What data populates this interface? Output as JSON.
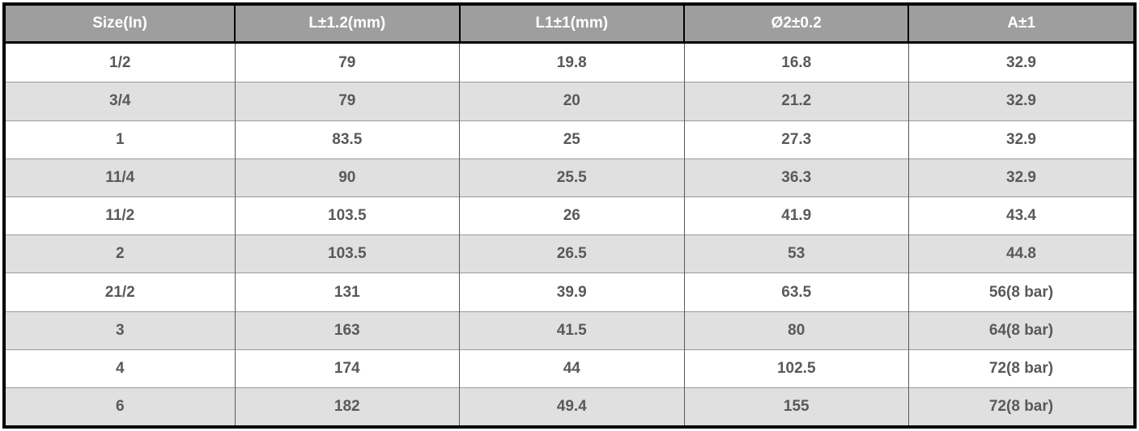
{
  "table": {
    "columns": [
      "Size(In)",
      "L±1.2(mm)",
      "L1±1(mm)",
      "Ø2±0.2",
      "A±1"
    ],
    "rows": [
      [
        "1/2",
        "79",
        "19.8",
        "16.8",
        "32.9"
      ],
      [
        "3/4",
        "79",
        "20",
        "21.2",
        "32.9"
      ],
      [
        "1",
        "83.5",
        "25",
        "27.3",
        "32.9"
      ],
      [
        "11/4",
        "90",
        "25.5",
        "36.3",
        "32.9"
      ],
      [
        "11/2",
        "103.5",
        "26",
        "41.9",
        "43.4"
      ],
      [
        "2",
        "103.5",
        "26.5",
        "53",
        "44.8"
      ],
      [
        "21/2",
        "131",
        "39.9",
        "63.5",
        "56(8 bar)"
      ],
      [
        "3",
        "163",
        "41.5",
        "80",
        "64(8 bar)"
      ],
      [
        "4",
        "174",
        "44",
        "102.5",
        "72(8 bar)"
      ],
      [
        "6",
        "182",
        "49.4",
        "155",
        "72(8 bar)"
      ]
    ],
    "colors": {
      "header_bg": "#9e9e9e",
      "header_text": "#ffffff",
      "row_bg": "#ffffff",
      "row_alt_bg": "#e0e0e0",
      "cell_text": "#595959",
      "border": "#000000",
      "grid_line": "#595959",
      "row_line": "#9a9a9a"
    }
  }
}
